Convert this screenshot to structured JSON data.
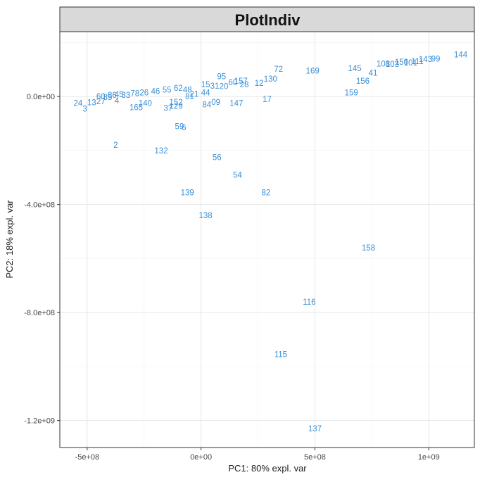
{
  "chart_data": {
    "type": "scatter",
    "title": "PlotIndiv",
    "xlabel": "PC1: 80% expl. var",
    "ylabel": "PC2: 18% expl. var",
    "xlim": [
      -620000000,
      1200000000
    ],
    "ylim": [
      -1300000000,
      240000000
    ],
    "x_ticks": [
      {
        "value": -500000000,
        "label": "-5e+08"
      },
      {
        "value": 0,
        "label": "0e+00"
      },
      {
        "value": 500000000,
        "label": "5e+08"
      },
      {
        "value": 1000000000,
        "label": "1e+09"
      }
    ],
    "y_ticks": [
      {
        "value": 0,
        "label": "0.0e+00"
      },
      {
        "value": -400000000,
        "label": "-4.0e+08"
      },
      {
        "value": -800000000,
        "label": "-8.0e+08"
      },
      {
        "value": -1200000000,
        "label": "-1.2e+09"
      }
    ],
    "grid": true,
    "legend": "none",
    "point_color": "#3a8fd6",
    "points": [
      {
        "label": "144",
        "x": 1140000000,
        "y": 155000000
      },
      {
        "label": "99",
        "x": 1030000000,
        "y": 140000000
      },
      {
        "label": "143",
        "x": 985000000,
        "y": 138000000
      },
      {
        "label": "111",
        "x": 950000000,
        "y": 130000000
      },
      {
        "label": "101",
        "x": 920000000,
        "y": 125000000
      },
      {
        "label": "150",
        "x": 880000000,
        "y": 128000000
      },
      {
        "label": "103",
        "x": 840000000,
        "y": 120000000
      },
      {
        "label": "108",
        "x": 800000000,
        "y": 122000000
      },
      {
        "label": "41",
        "x": 755000000,
        "y": 87000000
      },
      {
        "label": "145",
        "x": 675000000,
        "y": 105000000
      },
      {
        "label": "156",
        "x": 710000000,
        "y": 58000000
      },
      {
        "label": "159",
        "x": 660000000,
        "y": 15000000
      },
      {
        "label": "169",
        "x": 490000000,
        "y": 95000000
      },
      {
        "label": "72",
        "x": 340000000,
        "y": 102000000
      },
      {
        "label": "130",
        "x": 305000000,
        "y": 65000000
      },
      {
        "label": "12",
        "x": 255000000,
        "y": 50000000
      },
      {
        "label": "17",
        "x": 290000000,
        "y": -10000000
      },
      {
        "label": "147",
        "x": 155000000,
        "y": -25000000
      },
      {
        "label": "95",
        "x": 90000000,
        "y": 75000000
      },
      {
        "label": "157",
        "x": 175000000,
        "y": 58000000
      },
      {
        "label": "60",
        "x": 140000000,
        "y": 52000000
      },
      {
        "label": "28",
        "x": 190000000,
        "y": 45000000
      },
      {
        "label": "20",
        "x": 100000000,
        "y": 38000000
      },
      {
        "label": "31",
        "x": 60000000,
        "y": 40000000
      },
      {
        "label": "15",
        "x": 20000000,
        "y": 45000000
      },
      {
        "label": "44",
        "x": 20000000,
        "y": 15000000
      },
      {
        "label": "21",
        "x": -30000000,
        "y": 10000000
      },
      {
        "label": "48",
        "x": -60000000,
        "y": 25000000
      },
      {
        "label": "62",
        "x": -100000000,
        "y": 32000000
      },
      {
        "label": "55",
        "x": -150000000,
        "y": 25000000
      },
      {
        "label": "46",
        "x": -200000000,
        "y": 20000000
      },
      {
        "label": "26",
        "x": -250000000,
        "y": 15000000
      },
      {
        "label": "78",
        "x": -290000000,
        "y": 12000000
      },
      {
        "label": "33",
        "x": -330000000,
        "y": 5000000
      },
      {
        "label": "45",
        "x": -360000000,
        "y": 8000000
      },
      {
        "label": "86",
        "x": -390000000,
        "y": 5000000
      },
      {
        "label": "85",
        "x": -410000000,
        "y": -2000000
      },
      {
        "label": "60",
        "x": -440000000,
        "y": 0
      },
      {
        "label": "4",
        "x": -370000000,
        "y": -15000000
      },
      {
        "label": "27",
        "x": -440000000,
        "y": -18000000
      },
      {
        "label": "13",
        "x": -480000000,
        "y": -22000000
      },
      {
        "label": "24",
        "x": -540000000,
        "y": -25000000
      },
      {
        "label": "3",
        "x": -510000000,
        "y": -45000000
      },
      {
        "label": "140",
        "x": -245000000,
        "y": -25000000
      },
      {
        "label": "165",
        "x": -285000000,
        "y": -40000000
      },
      {
        "label": "152",
        "x": -110000000,
        "y": -20000000
      },
      {
        "label": "37",
        "x": -145000000,
        "y": -43000000
      },
      {
        "label": "129",
        "x": -110000000,
        "y": -35000000
      },
      {
        "label": "81",
        "x": -50000000,
        "y": 0
      },
      {
        "label": "84",
        "x": 25000000,
        "y": -30000000
      },
      {
        "label": "09",
        "x": 65000000,
        "y": -20000000
      },
      {
        "label": "2",
        "x": -375000000,
        "y": -180000000
      },
      {
        "label": "132",
        "x": -175000000,
        "y": -200000000
      },
      {
        "label": "59",
        "x": -95000000,
        "y": -110000000
      },
      {
        "label": "6",
        "x": -75000000,
        "y": -115000000
      },
      {
        "label": "56",
        "x": 70000000,
        "y": -225000000
      },
      {
        "label": "54",
        "x": 160000000,
        "y": -290000000
      },
      {
        "label": "82",
        "x": 285000000,
        "y": -355000000
      },
      {
        "label": "139",
        "x": -60000000,
        "y": -355000000
      },
      {
        "label": "138",
        "x": 20000000,
        "y": -440000000
      },
      {
        "label": "158",
        "x": 735000000,
        "y": -560000000
      },
      {
        "label": "116",
        "x": 475000000,
        "y": -760000000
      },
      {
        "label": "115",
        "x": 350000000,
        "y": -955000000
      },
      {
        "label": "137",
        "x": 500000000,
        "y": -1230000000
      }
    ]
  }
}
